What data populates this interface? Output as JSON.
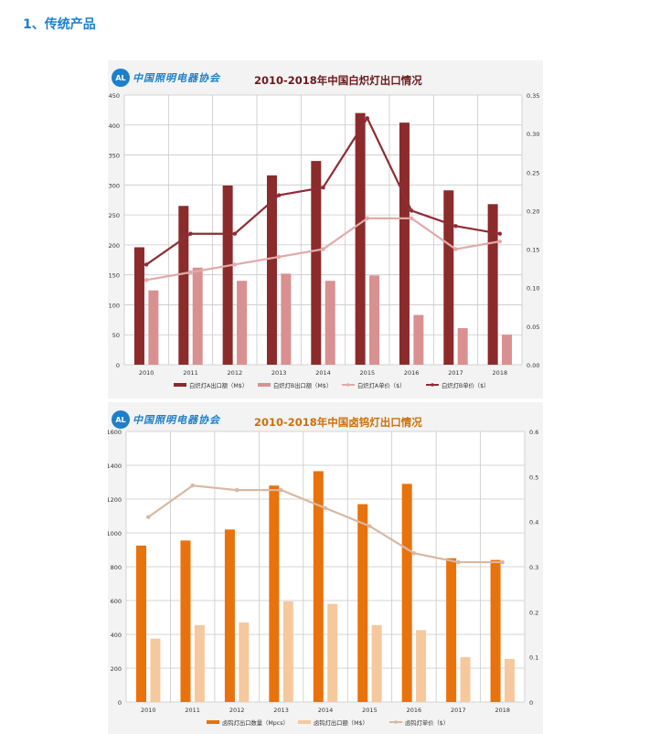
{
  "page": {
    "section_title": "1、传统产品"
  },
  "logo": {
    "text": "中国照明电器协会",
    "mark": "AL"
  },
  "colors": {
    "dark_red": "#8b2b2b",
    "pink": "#d99090",
    "line_light": "#e3a9a9",
    "line_dark": "#8e2d35",
    "orange": "#e8720c",
    "peach": "#f6c89e",
    "line_beige": "#d8b8a2",
    "title1": "#6a1a1a",
    "title2": "#cc6f0c",
    "logo": "#1e7fc8"
  },
  "chart_data": [
    {
      "type": "bar",
      "title": "2010-2018年中国白炽灯出口情况",
      "categories": [
        "2010",
        "2011",
        "2012",
        "2013",
        "2014",
        "2015",
        "2016",
        "2017",
        "2018"
      ],
      "ylim": [
        0,
        450
      ],
      "yticks": [
        0,
        50,
        100,
        150,
        200,
        250,
        300,
        350,
        400,
        450
      ],
      "y2lim": [
        0,
        0.35
      ],
      "y2ticks": [
        "0.00",
        "0.05",
        "0.10",
        "0.15",
        "0.20",
        "0.25",
        "0.30",
        "0.35"
      ],
      "series": [
        {
          "name": "白炽灯A出口额（M$）",
          "kind": "bar",
          "axis": "left",
          "color": "#8b2b2b",
          "values": [
            196,
            265,
            299,
            316,
            340,
            420,
            404,
            291,
            268
          ]
        },
        {
          "name": "白炽灯B出口额（M$）",
          "kind": "bar",
          "axis": "left",
          "color": "#d99090",
          "values": [
            124,
            162,
            140,
            152,
            140,
            149,
            83,
            61,
            50
          ]
        },
        {
          "name": "白炽灯A单价（$）",
          "kind": "line",
          "axis": "right",
          "color": "#e3a9a9",
          "values": [
            0.11,
            0.12,
            0.13,
            0.14,
            0.15,
            0.19,
            0.19,
            0.15,
            0.16
          ]
        },
        {
          "name": "白炽灯B单价（$）",
          "kind": "line",
          "axis": "right",
          "color": "#8e2d35",
          "values": [
            0.13,
            0.17,
            0.17,
            0.22,
            0.23,
            0.32,
            0.2,
            0.18,
            0.17
          ]
        }
      ]
    },
    {
      "type": "bar",
      "title": "2010-2018年中国卤钨灯出口情况",
      "categories": [
        "2010",
        "2011",
        "2012",
        "2013",
        "2014",
        "2015",
        "2016",
        "2017",
        "2018"
      ],
      "ylim": [
        0,
        1600
      ],
      "yticks": [
        0,
        200,
        400,
        600,
        800,
        1000,
        1200,
        1400,
        1600
      ],
      "y2lim": [
        0,
        0.6
      ],
      "y2ticks": [
        "0",
        "0.1",
        "0.2",
        "0.3",
        "0.4",
        "0.5",
        "0.6"
      ],
      "series": [
        {
          "name": "卤钨灯出口数量（Mpcs）",
          "kind": "bar",
          "axis": "left",
          "color": "#e8720c",
          "values": [
            925,
            955,
            1020,
            1280,
            1365,
            1170,
            1290,
            850,
            840
          ]
        },
        {
          "name": "卤钨灯出口额（M$）",
          "kind": "bar",
          "axis": "left",
          "color": "#f6c89e",
          "values": [
            375,
            455,
            470,
            595,
            580,
            455,
            425,
            265,
            255
          ]
        },
        {
          "name": "卤钨灯单价（$）",
          "kind": "line",
          "axis": "right",
          "color": "#d8b8a2",
          "values": [
            0.41,
            0.48,
            0.47,
            0.47,
            0.43,
            0.39,
            0.33,
            0.31,
            0.31
          ]
        }
      ]
    }
  ]
}
